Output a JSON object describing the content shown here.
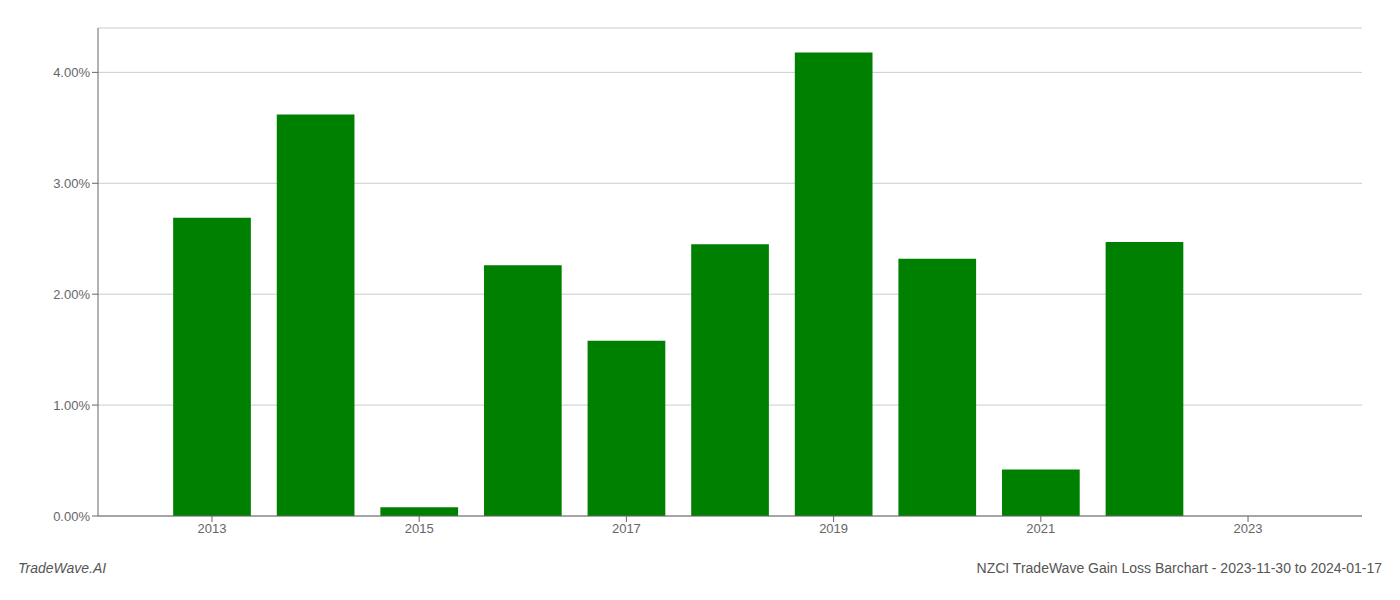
{
  "chart_data": {
    "type": "bar",
    "x": [
      2013,
      2014,
      2015,
      2016,
      2017,
      2018,
      2019,
      2020,
      2021,
      2022,
      2023
    ],
    "values": [
      0.0269,
      0.0362,
      0.0008,
      0.0226,
      0.0158,
      0.0245,
      0.0418,
      0.0232,
      0.0042,
      0.0247,
      0.0
    ],
    "color": "#008000",
    "xlim": [
      2011.9,
      2024.1
    ],
    "xticks": [
      2013,
      2015,
      2017,
      2019,
      2021,
      2023
    ],
    "ylim": [
      0.0,
      0.044
    ],
    "yticks": [
      {
        "value": 0.0,
        "label": "0.00%"
      },
      {
        "value": 0.01,
        "label": "1.00%"
      },
      {
        "value": 0.02,
        "label": "2.00%"
      },
      {
        "value": 0.03,
        "label": "3.00%"
      },
      {
        "value": 0.04,
        "label": "4.00%"
      }
    ],
    "grid": "y",
    "annotations": [
      "TradeWave.AI",
      "NZCI TradeWave Gain Loss Barchart - 2023-11-30 to 2024-01-17"
    ]
  }
}
